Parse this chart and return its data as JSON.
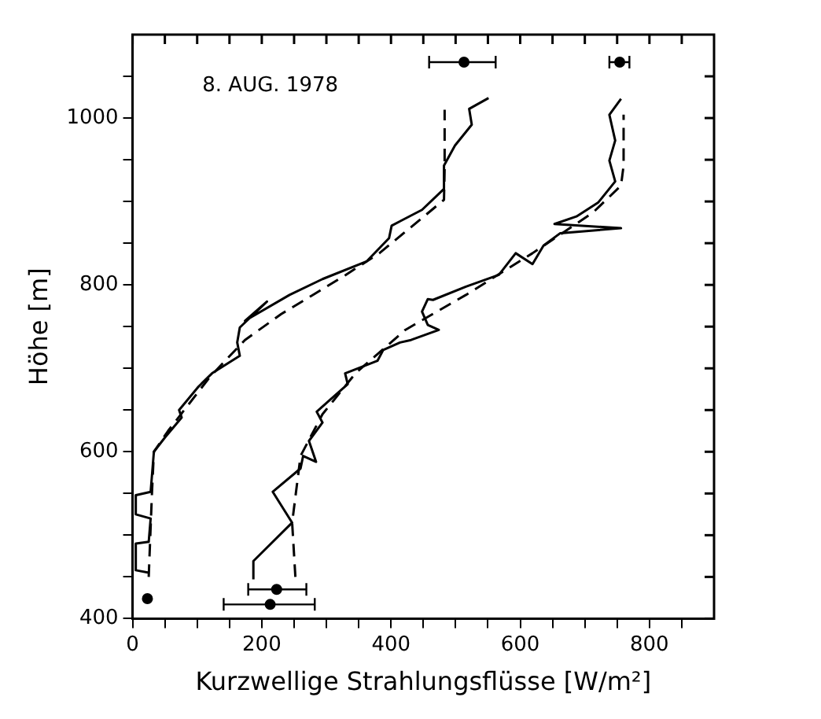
{
  "chart_data": {
    "type": "line",
    "xlabel": "Kurzwellige Strahlungsflüsse [W/m²]",
    "ylabel": "Höhe [m]",
    "annotations": [
      "8. AUG. 1978"
    ],
    "xlim": [
      0,
      900
    ],
    "ylim": [
      400,
      1100
    ],
    "xticks": [
      0,
      {
        "value": 50,
        "label": null
      },
      {
        "value": 100,
        "label": null
      },
      {
        "value": 150,
        "label": null
      },
      200,
      {
        "value": 250,
        "label": null
      },
      {
        "value": 300,
        "label": null
      },
      {
        "value": 350,
        "label": null
      },
      400,
      {
        "value": 450,
        "label": null
      },
      {
        "value": 500,
        "label": null
      },
      {
        "value": 550,
        "label": null
      },
      600,
      {
        "value": 650,
        "label": null
      },
      {
        "value": 700,
        "label": null
      },
      {
        "value": 750,
        "label": null
      },
      800,
      {
        "value": 850,
        "label": null
      }
    ],
    "yticks": [
      400,
      {
        "value": 450,
        "label": null
      },
      {
        "value": 500,
        "label": null
      },
      {
        "value": 550,
        "label": null
      },
      600,
      {
        "value": 650,
        "label": null
      },
      {
        "value": 700,
        "label": null
      },
      {
        "value": 750,
        "label": null
      },
      800,
      {
        "value": 850,
        "label": null
      },
      {
        "value": 900,
        "label": null
      },
      {
        "value": 950,
        "label": null
      },
      1000,
      {
        "value": 1050,
        "label": null
      }
    ],
    "grid": false,
    "legend": false,
    "marker": "none",
    "series": [
      {
        "type": "line",
        "line_style": "solid",
        "color": "#000000",
        "x": [
          25,
          5,
          5,
          25,
          28,
          5,
          5,
          28,
          33,
          50,
          76,
          72,
          102,
          123,
          166,
          162,
          166,
          208,
          174,
          243,
          294,
          362,
          397,
          401,
          448,
          482,
          482,
          499,
          525,
          521,
          551
        ],
        "values": [
          455,
          458,
          490,
          492,
          520,
          525,
          548,
          552,
          600,
          617,
          641,
          650,
          678,
          694,
          715,
          731,
          749,
          780,
          757,
          788,
          807,
          828,
          856,
          871,
          890,
          915,
          943,
          967,
          992,
          1011,
          1024
        ]
      },
      {
        "type": "line",
        "line_style": "dashed",
        "color": "#000000",
        "x": [
          25,
          30,
          33,
          55,
          80,
          120,
          174,
          230,
          277,
          330,
          382,
          440,
          482,
          483,
          483
        ],
        "values": [
          450,
          550,
          600,
          625,
          650,
          690,
          734,
          765,
          787,
          812,
          838,
          875,
          902,
          940,
          1010
        ]
      },
      {
        "type": "line",
        "line_style": "solid",
        "color": "#000000",
        "x": [
          187,
          187,
          247,
          217,
          260,
          264,
          284,
          273,
          294,
          285,
          311,
          333,
          329,
          379,
          388,
          414,
          431,
          474,
          457,
          448,
          457,
          465,
          516,
          567,
          593,
          619,
          636,
          662,
          756,
          653,
          687,
          721,
          747,
          738,
          747,
          738,
          756
        ],
        "values": [
          447,
          469,
          515,
          552,
          580,
          595,
          588,
          613,
          635,
          648,
          666,
          681,
          694,
          709,
          722,
          731,
          734,
          746,
          752,
          768,
          783,
          782,
          798,
          812,
          838,
          825,
          847,
          862,
          868,
          873,
          882,
          899,
          924,
          949,
          973,
          1004,
          1023
        ]
      },
      {
        "type": "line",
        "line_style": "dashed",
        "color": "#000000",
        "x": [
          252,
          247,
          260,
          294,
          345,
          422,
          516,
          619,
          713,
          756,
          760,
          760
        ],
        "values": [
          450,
          515,
          595,
          645,
          694,
          746,
          788,
          838,
          887,
          919,
          943,
          1004
        ]
      },
      {
        "type": "scatter",
        "marker": "circle",
        "color": "#000000",
        "x": [
          513,
          754,
          223,
          213
        ],
        "values": [
          1067,
          1067,
          435,
          417
        ],
        "xerrors": [
          [
            459,
            562
          ],
          [
            738,
            769
          ],
          [
            179,
            269
          ],
          [
            141,
            282
          ]
        ]
      },
      {
        "type": "scatter",
        "marker": "circle",
        "color": "#000000",
        "x": [
          23
        ],
        "values": [
          424
        ]
      }
    ]
  }
}
